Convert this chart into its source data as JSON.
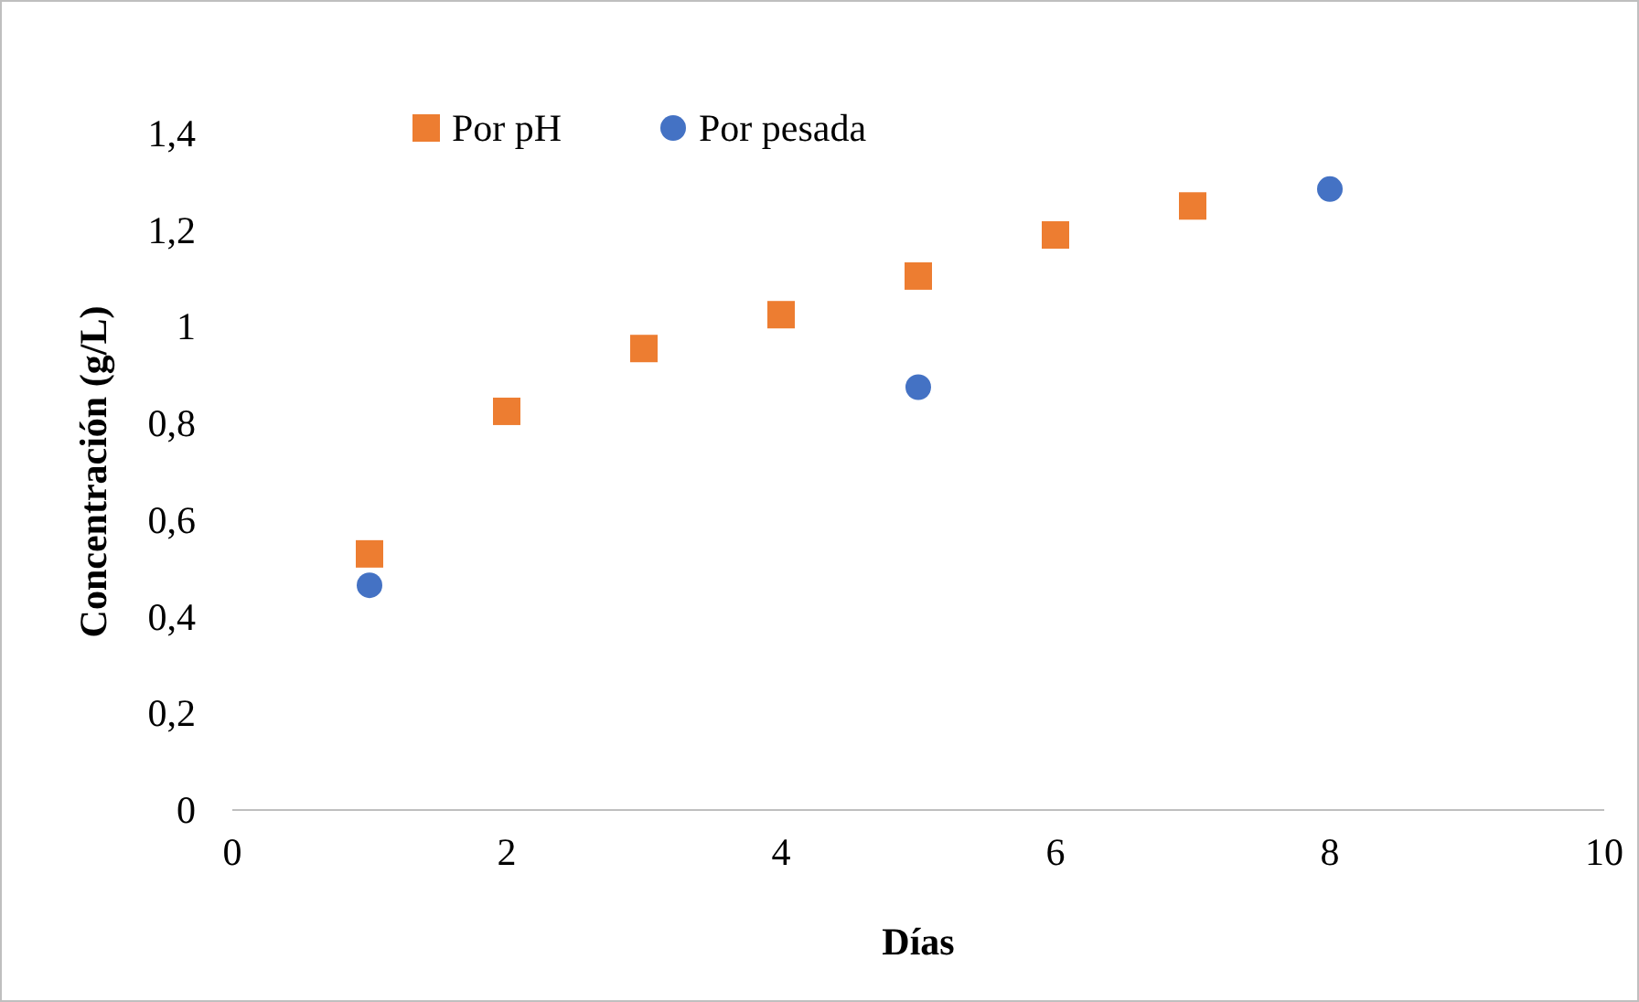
{
  "chart_data": {
    "type": "scatter",
    "xlabel": "Días",
    "ylabel": "Concentración (g/L)",
    "xlim": [
      0,
      10
    ],
    "xticks": [
      0,
      2,
      4,
      6,
      8,
      10
    ],
    "ylim": [
      0,
      1.4
    ],
    "yticks": [
      0,
      {
        "value": 0.2,
        "label": "0,2"
      },
      {
        "value": 0.4,
        "label": "0,4"
      },
      {
        "value": 0.6,
        "label": "0,6"
      },
      {
        "value": 0.8,
        "label": "0,8"
      },
      1,
      {
        "value": 1.2,
        "label": "1,2"
      },
      {
        "value": 1.4,
        "label": "1,4"
      }
    ],
    "grid": false,
    "legend": "top left",
    "series": [
      {
        "name": "Por pH",
        "color": "#ed7d31",
        "marker": "square",
        "x": [
          1,
          2,
          3,
          4,
          5,
          6,
          7
        ],
        "values": [
          0.53,
          0.825,
          0.955,
          1.025,
          1.105,
          1.19,
          1.25
        ]
      },
      {
        "name": "Por pesada",
        "color": "#4472c4",
        "marker": "circle",
        "x": [
          1,
          5,
          8
        ],
        "values": [
          0.465,
          0.875,
          1.285
        ]
      }
    ]
  }
}
